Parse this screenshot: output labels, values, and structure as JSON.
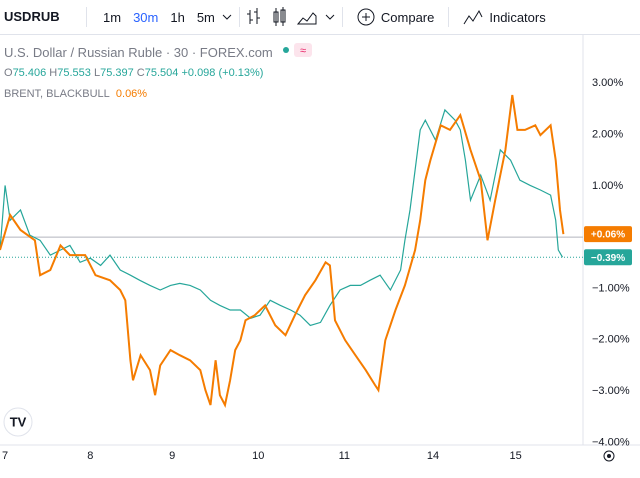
{
  "toolbar": {
    "intervals": [
      "1m",
      "30m",
      "1h",
      "5m"
    ],
    "compare": "Compare",
    "indicators": "Indicators"
  },
  "legend": {
    "title": "U.S. Dollar / Russian Ruble · 30 · FOREX.com",
    "ohlc": [
      [
        "O",
        "75.406"
      ],
      [
        "H",
        "75.553"
      ],
      [
        "L",
        "75.397"
      ],
      [
        "C",
        "75.504"
      ]
    ],
    "change": "+0.098 (+0.13%)",
    "compare_value": "0.06%"
  },
  "chart_data": {
    "type": "line",
    "xlim": [
      -0.06,
      6.78
    ],
    "xticks": [
      {
        "value": 0,
        "label": "7"
      },
      {
        "value": 1,
        "label": "8"
      },
      {
        "value": 1.96,
        "label": "9"
      },
      {
        "value": 2.97,
        "label": "10"
      },
      {
        "value": 3.98,
        "label": "11"
      },
      {
        "value": 5.02,
        "label": "14"
      },
      {
        "value": 5.99,
        "label": "15"
      }
    ],
    "ylim": [
      -4.05,
      3.94
    ],
    "yticks": [
      {
        "value": 3,
        "label": "3.00%"
      },
      {
        "value": 2,
        "label": "2.00%"
      },
      {
        "value": 1,
        "label": "1.00%"
      },
      {
        "value": -1,
        "label": "−1.00%"
      },
      {
        "value": -2,
        "label": "−2.00%"
      },
      {
        "value": -3,
        "label": "−3.00%"
      },
      {
        "value": -4,
        "label": "−4.00%"
      }
    ],
    "grid": false,
    "series": [
      {
        "name": "USDRUB",
        "color": "#26a69a",
        "last_label": "−0.39%",
        "x": [
          -0.06,
          0,
          0.06,
          0.18,
          0.29,
          0.41,
          0.53,
          0.65,
          0.76,
          0.88,
          1.0,
          1.12,
          1.23,
          1.35,
          1.47,
          1.58,
          1.7,
          1.82,
          1.94,
          2.05,
          2.17,
          2.29,
          2.41,
          2.52,
          2.64,
          2.76,
          2.88,
          2.99,
          3.11,
          3.23,
          3.35,
          3.46,
          3.58,
          3.7,
          3.81,
          3.93,
          4.05,
          4.17,
          4.28,
          4.4,
          4.52,
          4.64,
          4.69,
          4.75,
          4.81,
          4.87,
          4.93,
          5.05,
          5.16,
          5.28,
          5.34,
          5.4,
          5.46,
          5.58,
          5.69,
          5.81,
          5.93,
          6.04,
          6.16,
          6.28,
          6.4,
          6.46,
          6.49,
          6.54
        ],
        "values": [
          -0.25,
          1.01,
          0.33,
          0.53,
          0.04,
          -0.06,
          -0.35,
          -0.25,
          -0.16,
          -0.49,
          -0.41,
          -0.55,
          -0.35,
          -0.64,
          -0.74,
          -0.84,
          -0.94,
          -1.03,
          -0.94,
          -0.9,
          -0.94,
          -1.03,
          -1.23,
          -1.33,
          -1.42,
          -1.42,
          -1.58,
          -1.52,
          -1.23,
          -1.33,
          -1.42,
          -1.52,
          -1.72,
          -1.66,
          -1.33,
          -1.03,
          -0.94,
          -0.94,
          -0.84,
          -0.74,
          -1.03,
          -0.64,
          -0.06,
          0.53,
          1.31,
          2.09,
          2.28,
          1.89,
          2.48,
          2.28,
          2.09,
          1.5,
          0.72,
          1.21,
          0.72,
          1.7,
          1.5,
          1.11,
          1.01,
          0.92,
          0.82,
          0.33,
          -0.25,
          -0.39
        ]
      },
      {
        "name": "BRENT, BLACKBULL",
        "color": "#f57c00",
        "last_label": "+0.06%",
        "x": [
          -0.06,
          0.06,
          0.18,
          0.35,
          0.41,
          0.53,
          0.65,
          0.76,
          0.94,
          1.06,
          1.23,
          1.35,
          1.41,
          1.47,
          1.5,
          1.59,
          1.7,
          1.76,
          1.82,
          1.94,
          2.05,
          2.17,
          2.29,
          2.35,
          2.41,
          2.47,
          2.52,
          2.58,
          2.64,
          2.7,
          2.76,
          2.82,
          2.93,
          3.05,
          3.17,
          3.29,
          3.4,
          3.52,
          3.64,
          3.76,
          3.81,
          3.87,
          3.99,
          4.11,
          4.23,
          4.34,
          4.38,
          4.46,
          4.58,
          4.69,
          4.81,
          4.87,
          4.93,
          4.99,
          5.11,
          5.22,
          5.34,
          5.46,
          5.58,
          5.66,
          5.75,
          5.87,
          5.95,
          6.01,
          6.1,
          6.22,
          6.28,
          6.4,
          6.46,
          6.51,
          6.55
        ],
        "values": [
          -0.25,
          0.43,
          0.14,
          -0.06,
          -0.74,
          -0.64,
          -0.16,
          -0.35,
          -0.35,
          -0.74,
          -0.84,
          -1.03,
          -1.23,
          -2.4,
          -2.79,
          -2.3,
          -2.59,
          -3.08,
          -2.5,
          -2.2,
          -2.3,
          -2.4,
          -2.59,
          -2.98,
          -3.27,
          -2.4,
          -3.08,
          -3.27,
          -2.79,
          -2.2,
          -2.01,
          -1.62,
          -1.52,
          -1.33,
          -1.72,
          -1.91,
          -1.52,
          -1.13,
          -0.84,
          -0.49,
          -0.55,
          -1.62,
          -2.01,
          -2.3,
          -2.59,
          -2.88,
          -2.98,
          -2.01,
          -1.42,
          -0.94,
          -0.25,
          0.33,
          1.11,
          1.5,
          2.18,
          2.09,
          2.38,
          1.7,
          1.11,
          -0.06,
          0.72,
          1.7,
          2.77,
          2.09,
          2.09,
          2.18,
          1.99,
          2.18,
          1.5,
          0.53,
          0.06
        ]
      }
    ]
  }
}
